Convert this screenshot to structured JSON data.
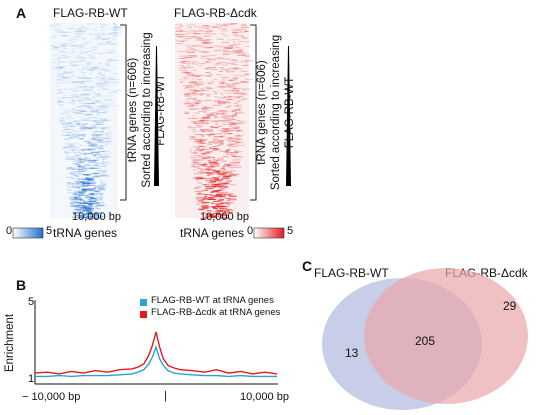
{
  "panel_a": {
    "letter": "A",
    "wt": {
      "title": "FLAG-RB-WT",
      "scale_label": "10,000 bp",
      "colorbar_min": "0",
      "colorbar_max": "5",
      "xaxis_label": "tRNA genes",
      "color": "#1f6fd1"
    },
    "dcdk": {
      "title": "FLAG-RB-Δcdk",
      "scale_label": "10,000 bp",
      "colorbar_min": "0",
      "colorbar_max": "5",
      "xaxis_label": "tRNA genes",
      "color": "#e41a1c"
    },
    "side_label_line1": "tRNA genes (n=606)",
    "side_label_line2": "Sorted according to increasing FLAG-RB-WT"
  },
  "panel_b": {
    "letter": "B"
  },
  "panel_c": {
    "letter": "C"
  },
  "chart_data": [
    {
      "type": "line",
      "ylabel": "Enrichment",
      "xlim_labels": [
        "− 10,000 bp",
        "10,000 bp"
      ],
      "center_tick": "|",
      "yticks": [
        "5",
        "1"
      ],
      "ylim": [
        0,
        5
      ],
      "x": [
        -10000,
        -9000,
        -8000,
        -7000,
        -6000,
        -5000,
        -4000,
        -3000,
        -2000,
        -1500,
        -1000,
        -600,
        -300,
        0,
        300,
        600,
        1000,
        1500,
        2000,
        3000,
        4000,
        5000,
        6000,
        7000,
        8000,
        9000,
        10000
      ],
      "series": [
        {
          "name": "FLAG-RB-WT at tRNA genes",
          "color": "#29a3d6",
          "values": [
            0.45,
            0.45,
            0.5,
            0.45,
            0.5,
            0.5,
            0.5,
            0.55,
            0.6,
            0.7,
            0.85,
            1.2,
            1.6,
            2.2,
            1.5,
            1.1,
            0.8,
            0.65,
            0.6,
            0.55,
            0.5,
            0.5,
            0.45,
            0.5,
            0.45,
            0.45,
            0.45
          ]
        },
        {
          "name": "FLAG-RB-Δcdk at tRNA genes",
          "color": "#e41a1c",
          "values": [
            0.65,
            0.7,
            0.6,
            0.75,
            0.65,
            0.8,
            0.7,
            0.85,
            0.9,
            1.0,
            1.2,
            1.7,
            2.3,
            3.1,
            2.2,
            1.5,
            1.1,
            0.95,
            0.85,
            0.8,
            0.7,
            0.85,
            0.65,
            0.75,
            0.6,
            0.7,
            0.6
          ]
        }
      ]
    },
    {
      "type": "venn",
      "sets": [
        {
          "name": "FLAG-RB-WT",
          "only": 13,
          "color": "#aab4dc"
        },
        {
          "name": "FLAG-RB-Δcdk",
          "only": 29,
          "color": "#e8a6ab"
        }
      ],
      "intersection": 205
    }
  ]
}
